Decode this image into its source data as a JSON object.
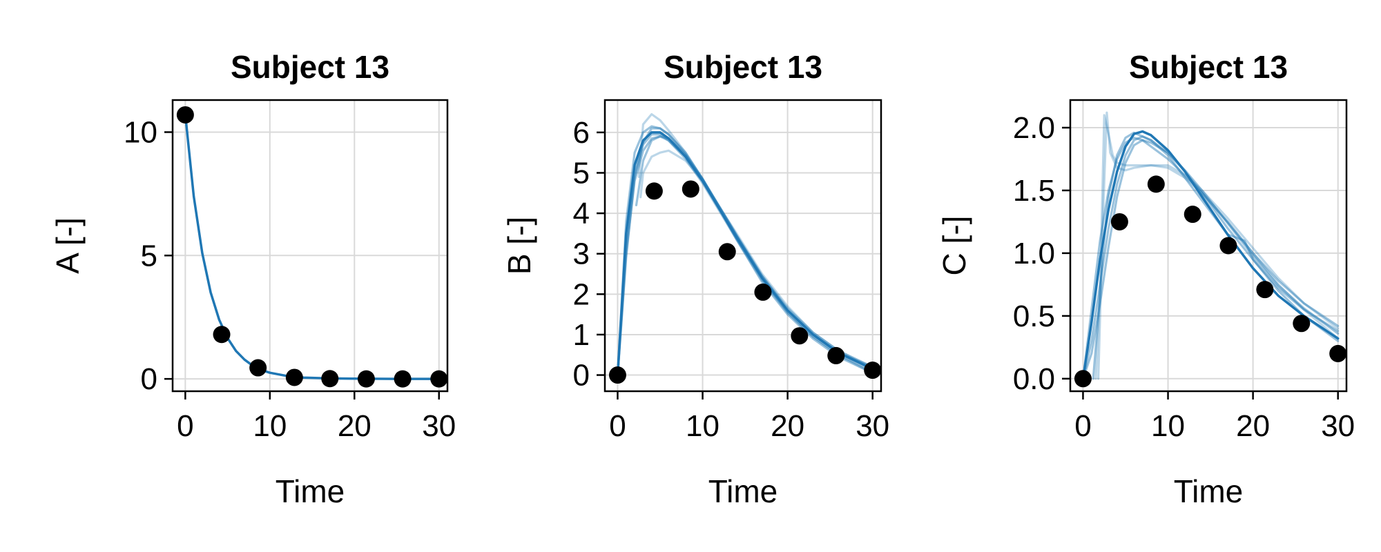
{
  "colors": {
    "prediction": "#1f77b4",
    "observation": "#000000",
    "grid": "#d9d9d9"
  },
  "chart_data": [
    {
      "type": "line",
      "title": "Subject 13",
      "xlabel": "Time",
      "ylabel": "A [-]",
      "xlim": [
        -1.5,
        31
      ],
      "ylim": [
        -0.5,
        11.3
      ],
      "xticks": [
        0,
        10,
        20,
        30
      ],
      "yticks": [
        0,
        5,
        10
      ],
      "ytick_labels": [
        "0",
        "5",
        "10"
      ],
      "grid": true,
      "observations": {
        "x": [
          0,
          4.3,
          8.6,
          12.9,
          17.1,
          21.4,
          25.7,
          30
        ],
        "y": [
          10.7,
          1.8,
          0.45,
          0.06,
          0.01,
          0.0,
          0.0,
          0.0
        ]
      },
      "predictions": [
        {
          "x": [
            0,
            1,
            2,
            3,
            4,
            5,
            6,
            7,
            8,
            9,
            10,
            12,
            14,
            17,
            20,
            25,
            30
          ],
          "y": [
            10.7,
            7.4,
            5.1,
            3.5,
            2.4,
            1.65,
            1.13,
            0.78,
            0.53,
            0.36,
            0.25,
            0.12,
            0.05,
            0.02,
            0.01,
            0.0,
            0.0
          ],
          "opacity": 1.0
        }
      ]
    },
    {
      "type": "line",
      "title": "Subject 13",
      "xlabel": "Time",
      "ylabel": "B [-]",
      "xlim": [
        -1.5,
        31
      ],
      "ylim": [
        -0.4,
        6.8
      ],
      "xticks": [
        0,
        10,
        20,
        30
      ],
      "yticks": [
        0,
        1,
        2,
        3,
        4,
        5,
        6
      ],
      "ytick_labels": [
        "0",
        "1",
        "2",
        "3",
        "4",
        "5",
        "6"
      ],
      "grid": true,
      "observations": {
        "x": [
          0,
          4.3,
          8.6,
          12.9,
          17.1,
          21.4,
          25.7,
          30
        ],
        "y": [
          0.0,
          4.55,
          4.6,
          3.05,
          2.05,
          0.97,
          0.48,
          0.12
        ]
      },
      "predictions": [
        {
          "x": [
            0,
            1,
            2,
            3,
            4,
            5,
            6,
            8,
            10,
            12,
            14,
            17,
            20,
            23,
            26,
            30
          ],
          "y": [
            0,
            3.5,
            5.2,
            5.8,
            6.0,
            6.0,
            5.85,
            5.4,
            4.8,
            4.1,
            3.4,
            2.4,
            1.6,
            1.0,
            0.55,
            0.15
          ],
          "opacity": 1.0
        },
        {
          "x": [
            0,
            1,
            2,
            3,
            4,
            5,
            6,
            8,
            10,
            12,
            14,
            17,
            20,
            23,
            26,
            30
          ],
          "y": [
            0,
            3.2,
            5.0,
            5.7,
            5.95,
            5.95,
            5.8,
            5.35,
            4.75,
            4.05,
            3.35,
            2.35,
            1.55,
            0.95,
            0.5,
            0.1
          ],
          "opacity": 0.45
        },
        {
          "x": [
            0,
            1,
            2,
            3,
            4,
            5,
            6,
            8,
            10,
            12,
            14,
            17,
            20,
            23,
            26,
            30
          ],
          "y": [
            0,
            3.8,
            5.5,
            6.0,
            6.15,
            6.1,
            5.95,
            5.45,
            4.8,
            4.1,
            3.4,
            2.4,
            1.6,
            1.0,
            0.55,
            0.2
          ],
          "opacity": 0.45
        },
        {
          "x": [
            0,
            1,
            2,
            3,
            4,
            5,
            6,
            8,
            10,
            12,
            14,
            17,
            20,
            23,
            26,
            30
          ],
          "y": [
            0,
            3.0,
            4.8,
            5.55,
            5.85,
            5.9,
            5.8,
            5.4,
            4.85,
            4.15,
            3.45,
            2.45,
            1.65,
            1.05,
            0.6,
            0.2
          ],
          "opacity": 0.45
        },
        {
          "x": [
            0,
            1,
            2,
            3,
            4,
            5,
            6,
            8,
            10,
            12,
            14,
            17,
            20,
            23,
            26,
            30
          ],
          "y": [
            0,
            2.9,
            4.9,
            5.75,
            6.1,
            6.1,
            5.95,
            5.5,
            4.85,
            4.1,
            3.35,
            2.3,
            1.5,
            0.9,
            0.45,
            0.05
          ],
          "opacity": 0.45
        },
        {
          "x": [
            2.2,
            3,
            4,
            5,
            6,
            8,
            10,
            12,
            14,
            17,
            20,
            23,
            26,
            30
          ],
          "y": [
            4.2,
            5.3,
            5.8,
            5.9,
            5.85,
            5.45,
            4.85,
            4.15,
            3.45,
            2.45,
            1.6,
            1.0,
            0.55,
            0.15
          ],
          "opacity": 0.45
        },
        {
          "x": [
            2.5,
            3,
            4,
            5,
            6,
            8,
            10,
            12,
            14,
            17,
            20,
            23,
            26,
            30
          ],
          "y": [
            4.9,
            6.2,
            6.45,
            6.3,
            6.05,
            5.5,
            4.85,
            4.15,
            3.45,
            2.4,
            1.55,
            0.95,
            0.5,
            0.05
          ],
          "opacity": 0.3
        },
        {
          "x": [
            2.7,
            3,
            4,
            5,
            6,
            8,
            10,
            12,
            14,
            17,
            20,
            23,
            26,
            30
          ],
          "y": [
            4.4,
            5.0,
            5.4,
            5.5,
            5.55,
            5.3,
            4.8,
            4.15,
            3.5,
            2.5,
            1.7,
            1.05,
            0.6,
            0.15
          ],
          "opacity": 0.3
        }
      ]
    },
    {
      "type": "line",
      "title": "Subject 13",
      "xlabel": "Time",
      "ylabel": "C [-]",
      "xlim": [
        -1.5,
        31
      ],
      "ylim": [
        -0.1,
        2.22
      ],
      "xticks": [
        0,
        10,
        20,
        30
      ],
      "yticks": [
        0.0,
        0.5,
        1.0,
        1.5,
        2.0
      ],
      "ytick_labels": [
        "0.0",
        "0.5",
        "1.0",
        "1.5",
        "2.0"
      ],
      "grid": true,
      "observations": {
        "x": [
          0,
          4.3,
          8.6,
          12.9,
          17.1,
          21.4,
          25.7,
          30
        ],
        "y": [
          0.0,
          1.25,
          1.55,
          1.31,
          1.06,
          0.71,
          0.44,
          0.2
        ]
      },
      "predictions": [
        {
          "x": [
            0,
            1,
            2,
            3,
            4,
            5,
            6,
            7,
            8,
            10,
            12,
            14,
            17,
            20,
            23,
            26,
            30
          ],
          "y": [
            0,
            0.45,
            0.95,
            1.35,
            1.65,
            1.85,
            1.95,
            1.97,
            1.94,
            1.82,
            1.65,
            1.45,
            1.15,
            0.88,
            0.66,
            0.5,
            0.32
          ],
          "opacity": 1.0
        },
        {
          "x": [
            0,
            1,
            2,
            3,
            4,
            5,
            6,
            7,
            8,
            10,
            12,
            14,
            17,
            20,
            23,
            26,
            30
          ],
          "y": [
            0,
            0.3,
            0.75,
            1.2,
            1.55,
            1.78,
            1.9,
            1.93,
            1.9,
            1.8,
            1.65,
            1.48,
            1.2,
            0.95,
            0.72,
            0.55,
            0.38
          ],
          "opacity": 0.45
        },
        {
          "x": [
            0,
            1,
            2,
            3,
            4,
            5,
            6,
            7,
            8,
            10,
            12,
            14,
            17,
            20,
            23,
            26,
            30
          ],
          "y": [
            0,
            0.55,
            1.1,
            1.5,
            1.75,
            1.88,
            1.92,
            1.9,
            1.85,
            1.75,
            1.62,
            1.48,
            1.25,
            1.0,
            0.78,
            0.6,
            0.42
          ],
          "opacity": 0.45
        },
        {
          "x": [
            0,
            1,
            2,
            3,
            4,
            5,
            6,
            7,
            8,
            10,
            12,
            14,
            17,
            20,
            23,
            26,
            30
          ],
          "y": [
            0,
            0.2,
            0.6,
            1.05,
            1.45,
            1.72,
            1.86,
            1.9,
            1.88,
            1.8,
            1.66,
            1.5,
            1.24,
            0.98,
            0.74,
            0.56,
            0.36
          ],
          "opacity": 0.45
        },
        {
          "x": [
            1.2,
            1.8,
            2.4,
            3,
            4,
            5,
            6,
            8,
            10,
            12,
            14,
            17,
            19,
            20,
            23,
            26,
            30
          ],
          "y": [
            0,
            0.5,
            1.05,
            1.45,
            1.78,
            1.92,
            1.96,
            1.9,
            1.78,
            1.6,
            1.42,
            1.15,
            1.1,
            0.95,
            0.7,
            0.5,
            0.3
          ],
          "opacity": 0.45
        },
        {
          "x": [
            1.5,
            2.0,
            2.5,
            3,
            3.5,
            4,
            5,
            6,
            8,
            10,
            12,
            14,
            17,
            20,
            23,
            26,
            30
          ],
          "y": [
            0,
            0.7,
            2.1,
            1.95,
            1.78,
            1.72,
            1.7,
            1.7,
            1.7,
            1.68,
            1.6,
            1.48,
            1.25,
            1.0,
            0.75,
            0.55,
            0.32
          ],
          "opacity": 0.3
        },
        {
          "x": [
            1.8,
            2.3,
            2.8,
            3.2,
            4,
            5,
            6,
            8,
            10,
            12,
            14,
            17,
            20,
            23,
            26,
            30
          ],
          "y": [
            0,
            1.2,
            2.12,
            1.8,
            1.68,
            1.66,
            1.68,
            1.7,
            1.7,
            1.62,
            1.5,
            1.28,
            1.04,
            0.8,
            0.6,
            0.4
          ],
          "opacity": 0.3
        }
      ]
    }
  ]
}
